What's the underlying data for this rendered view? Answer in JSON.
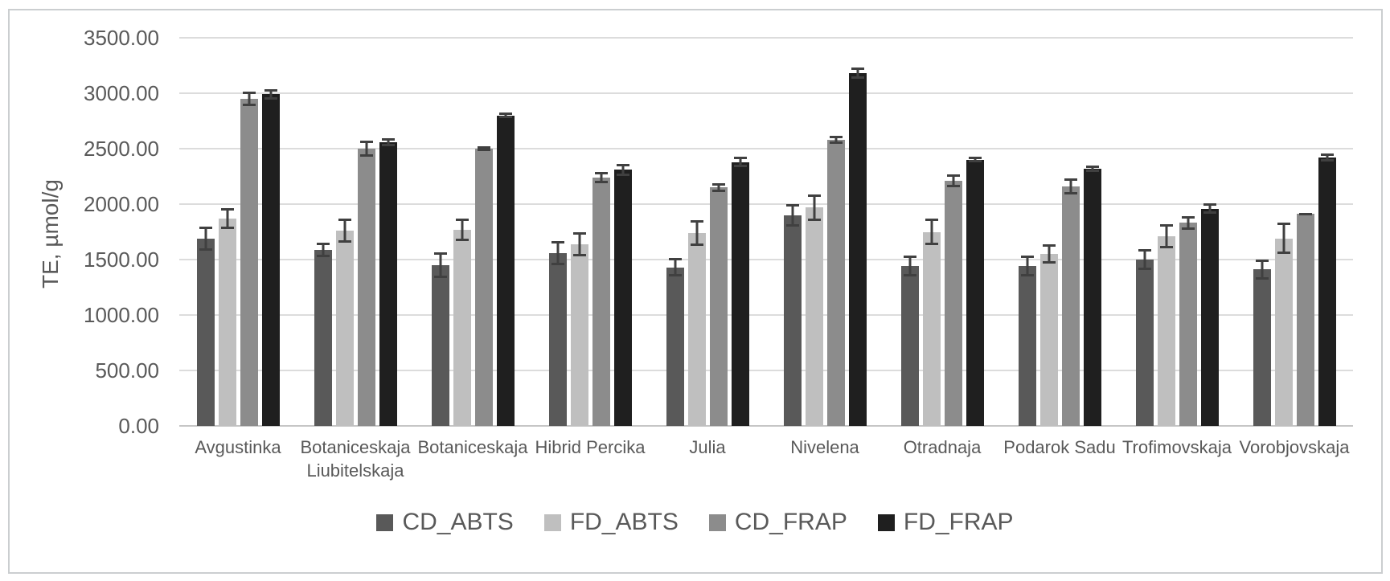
{
  "chart_data": {
    "type": "bar",
    "title": "",
    "xlabel": "",
    "ylabel": "TE, µmol/g",
    "ylim": [
      0,
      3500
    ],
    "ytick_step": 500,
    "ytick_decimals": 2,
    "grid": true,
    "legend_position": "bottom",
    "categories": [
      "Avgustinka",
      "Botaniceskaja Liubitelskaja",
      "Botaniceskaja",
      "Hibrid Percika",
      "Julia",
      "Nivelena",
      "Otradnaja",
      "Podarok Sadu",
      "Trofimovskaja",
      "Vorobjovskaja"
    ],
    "series": [
      {
        "name": "CD_ABTS",
        "color": "#595959",
        "values": [
          1690,
          1590,
          1450,
          1560,
          1430,
          1900,
          1440,
          1440,
          1500,
          1410
        ],
        "errors": [
          110,
          65,
          115,
          110,
          85,
          100,
          95,
          95,
          95,
          90
        ]
      },
      {
        "name": "FD_ABTS",
        "color": "#BFBFBF",
        "values": [
          1870,
          1760,
          1770,
          1640,
          1740,
          1970,
          1750,
          1550,
          1710,
          1690
        ],
        "errors": [
          95,
          110,
          100,
          110,
          115,
          120,
          120,
          85,
          110,
          140
        ]
      },
      {
        "name": "CD_FRAP",
        "color": "#8C8C8C",
        "values": [
          2950,
          2500,
          2500,
          2240,
          2150,
          2580,
          2210,
          2160,
          1830,
          1910
        ],
        "errors": [
          65,
          70,
          20,
          50,
          40,
          35,
          60,
          75,
          65,
          10
        ]
      },
      {
        "name": "FD_FRAP",
        "color": "#1F1F1F",
        "values": [
          2990,
          2560,
          2800,
          2310,
          2380,
          3180,
          2400,
          2320,
          1960,
          2420
        ],
        "errors": [
          50,
          35,
          25,
          55,
          45,
          50,
          25,
          30,
          45,
          35
        ]
      }
    ],
    "colors": {
      "error_bar": "#404040",
      "gridline": "#dcdcdc",
      "axis_line": "#c6c6c6",
      "text": "#595959",
      "frame_border": "#cbced0",
      "background": "#ffffff"
    }
  }
}
